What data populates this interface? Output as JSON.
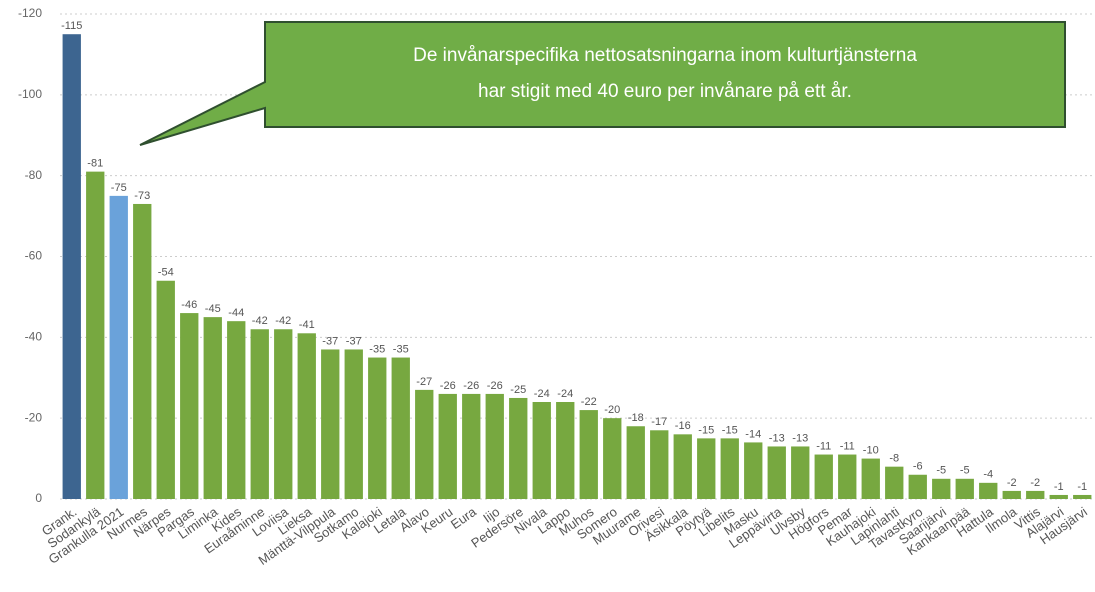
{
  "chart_data": {
    "type": "bar",
    "categories": [
      "Grank.",
      "Sodankylä",
      "Grankulla 2021",
      "Nurmes",
      "Närpes",
      "Pargas",
      "Liminka",
      "Kides",
      "Euraåminne",
      "Loviisa",
      "Lieksa",
      "Mänttä-Vilppula",
      "Sotkamo",
      "Kalajoki",
      "Letala",
      "Alavo",
      "Keuru",
      "Eura",
      "Iijo",
      "Pedersöre",
      "Nivala",
      "Lappo",
      "Muhos",
      "Somero",
      "Muurame",
      "Orivesi",
      "Äsikkala",
      "Pöytyä",
      "Libelits",
      "Masku",
      "Leppävirta",
      "Ulvsby",
      "Högfors",
      "Pemar",
      "Kauhajoki",
      "Lapinlahti",
      "Tavastkyro",
      "Saarijärvi",
      "Kankaanpää",
      "Hattula",
      "Ilmola",
      "Vittis",
      "Alajärvi",
      "Hausjärvi"
    ],
    "values": [
      -115,
      -81,
      -75,
      -73,
      -54,
      -46,
      -45,
      -44,
      -42,
      -42,
      -41,
      -37,
      -37,
      -35,
      -35,
      -27,
      -26,
      -26,
      -26,
      -25,
      -24,
      -24,
      -22,
      -20,
      -18,
      -17,
      -16,
      -15,
      -15,
      -14,
      -13,
      -13,
      -11,
      -11,
      -10,
      -8,
      -6,
      -5,
      -5,
      -4,
      -2,
      -2,
      -1,
      -1
    ],
    "colors": [
      "#3d6590",
      "#77a840",
      "#6aa2da",
      "#77a840",
      "#77a840",
      "#77a840",
      "#77a840",
      "#77a840",
      "#77a840",
      "#77a840",
      "#77a840",
      "#77a840",
      "#77a840",
      "#77a840",
      "#77a840",
      "#77a840",
      "#77a840",
      "#77a840",
      "#77a840",
      "#77a840",
      "#77a840",
      "#77a840",
      "#77a840",
      "#77a840",
      "#77a840",
      "#77a840",
      "#77a840",
      "#77a840",
      "#77a840",
      "#77a840",
      "#77a840",
      "#77a840",
      "#77a840",
      "#77a840",
      "#77a840",
      "#77a840",
      "#77a840",
      "#77a840",
      "#77a840",
      "#77a840",
      "#77a840",
      "#77a840",
      "#77a840",
      "#77a840"
    ],
    "ylim": [
      0,
      -120
    ],
    "yticks": [
      0,
      -20,
      -40,
      -60,
      -80,
      -100,
      -120
    ],
    "grid": true,
    "annotation": {
      "lines": [
        "De invånarspecifika nettosatsningarna inom kulturtjänsterna",
        "har stigit med 40 euro per invånare på ett år."
      ]
    }
  }
}
